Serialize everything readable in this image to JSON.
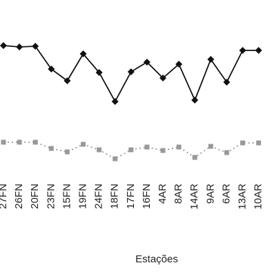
{
  "chart_data": {
    "type": "line",
    "x_label": "Estações",
    "categories": [
      "27FN",
      "26FN",
      "20FN",
      "23FN",
      "15FN",
      "19FN",
      "24FN",
      "18FN",
      "17FN",
      "16FN",
      "4AR",
      "8AR",
      "14AR",
      "9AR",
      "6AR",
      "13AR",
      "10AR"
    ],
    "series": [
      {
        "color": "#111111",
        "values": [
          184,
          182,
          183,
          150,
          133,
          172,
          145,
          103,
          146,
          160,
          137,
          157,
          105,
          164,
          131,
          177,
          177
        ]
      },
      {
        "color": "#999999",
        "values": [
          44,
          44,
          44,
          35,
          30,
          41,
          33,
          20,
          33,
          37,
          32,
          37,
          22,
          38,
          29,
          43,
          43
        ]
      }
    ],
    "ylim": [
      0,
      250
    ]
  }
}
